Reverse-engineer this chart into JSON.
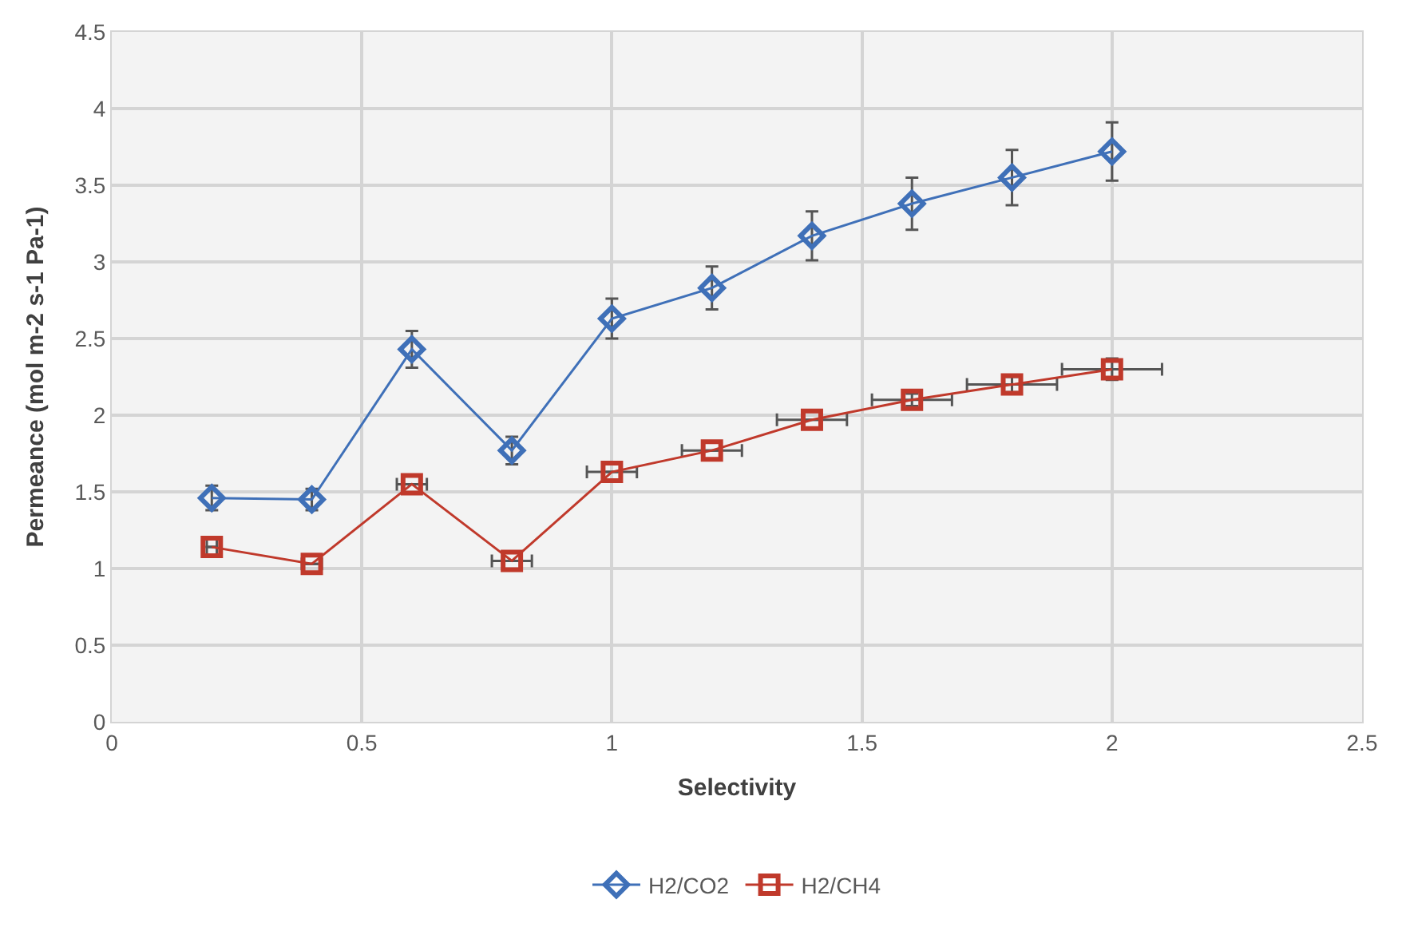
{
  "chart_data": {
    "type": "line",
    "xlabel": "Selectivity",
    "ylabel": "Permeance (mol m-2 s-1 Pa-1)",
    "x": [
      0.2,
      0.4,
      0.6,
      0.8,
      1.0,
      1.2,
      1.4,
      1.6,
      1.8,
      2.0
    ],
    "series": [
      {
        "name": "H2/CO2",
        "color": "#3f70b8",
        "marker": "diamond",
        "values": [
          1.46,
          1.45,
          2.43,
          1.77,
          2.63,
          2.83,
          3.17,
          3.38,
          3.55,
          3.72
        ],
        "errors": [
          0.08,
          0.07,
          0.12,
          0.09,
          0.13,
          0.14,
          0.16,
          0.17,
          0.18,
          0.19
        ]
      },
      {
        "name": "H2/CH4",
        "color": "#c0392b",
        "marker": "square",
        "values": [
          1.14,
          1.03,
          1.55,
          1.05,
          1.63,
          1.77,
          1.97,
          2.1,
          2.2,
          2.3
        ],
        "errors": [
          null,
          null,
          null,
          null,
          null,
          null,
          null,
          0.04,
          0.05,
          0.07
        ],
        "xerrors": [
          0.01,
          0.02,
          0.03,
          0.04,
          0.05,
          0.06,
          0.07,
          0.08,
          0.09,
          0.1
        ]
      }
    ],
    "xlim": [
      0,
      2.5
    ],
    "xticks": [
      0,
      0.5,
      1,
      1.5,
      2,
      2.5
    ],
    "ylim": [
      0,
      4.5
    ],
    "yticks": [
      0,
      0.5,
      1,
      1.5,
      2,
      2.5,
      3,
      3.5,
      4,
      4.5
    ],
    "grid": true,
    "legend": "bottom",
    "line_style": "solid"
  }
}
